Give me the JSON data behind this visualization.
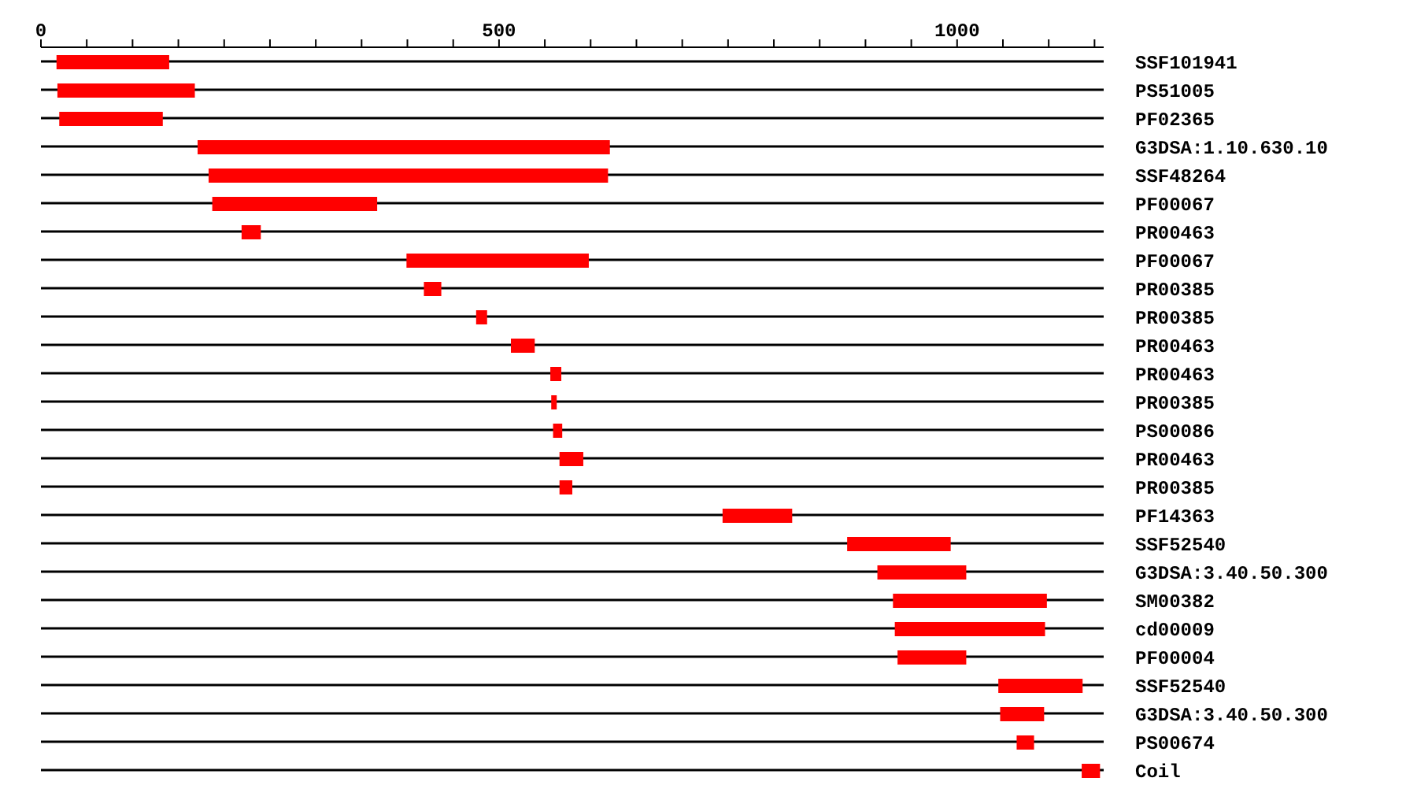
{
  "chart_data": {
    "type": "bar",
    "orientation": "horizontal",
    "color": "#ff0000",
    "grid": "y",
    "categories": [
      "SSF101941",
      "PS51005",
      "PF02365",
      "G3DSA:1.10.630.10",
      "SSF48264",
      "PF00067",
      "PR00463",
      "PF00067",
      "PR00385",
      "PR00385",
      "PR00463",
      "PR00463",
      "PR00385",
      "PS00086",
      "PR00463",
      "PR00385",
      "PF14363",
      "SSF52540",
      "G3DSA:3.40.50.300",
      "SM00382",
      "cd00009",
      "PF00004",
      "SSF52540",
      "G3DSA:3.40.50.300",
      "PS00674",
      "Coil"
    ],
    "base": [
      17,
      18,
      20,
      171,
      183,
      187,
      219,
      399,
      418,
      475,
      513,
      556,
      557,
      559,
      566,
      566,
      744,
      880,
      913,
      930,
      932,
      935,
      1045,
      1047,
      1065,
      1136
    ],
    "values": [
      123,
      150,
      113,
      450,
      436,
      180,
      21,
      199,
      19,
      12,
      26,
      12,
      6,
      10,
      26,
      14,
      76,
      113,
      97,
      168,
      164,
      75,
      92,
      48,
      19,
      20
    ],
    "xlim": [
      0,
      1160
    ],
    "xticks": [
      0,
      {
        "value": 50,
        "label": null
      },
      {
        "value": 100,
        "label": null
      },
      {
        "value": 150,
        "label": null
      },
      {
        "value": 200,
        "label": null
      },
      {
        "value": 250,
        "label": null
      },
      {
        "value": 300,
        "label": null
      },
      {
        "value": 350,
        "label": null
      },
      {
        "value": 400,
        "label": null
      },
      {
        "value": 450,
        "label": null
      },
      500,
      {
        "value": 550,
        "label": null
      },
      {
        "value": 600,
        "label": null
      },
      {
        "value": 650,
        "label": null
      },
      {
        "value": 700,
        "label": null
      },
      {
        "value": 750,
        "label": null
      },
      {
        "value": 800,
        "label": null
      },
      {
        "value": 850,
        "label": null
      },
      {
        "value": 900,
        "label": null
      },
      {
        "value": 950,
        "label": null
      },
      1000,
      {
        "value": 1050,
        "label": null
      },
      {
        "value": 1100,
        "label": null
      },
      {
        "value": 1150,
        "label": null
      }
    ]
  }
}
